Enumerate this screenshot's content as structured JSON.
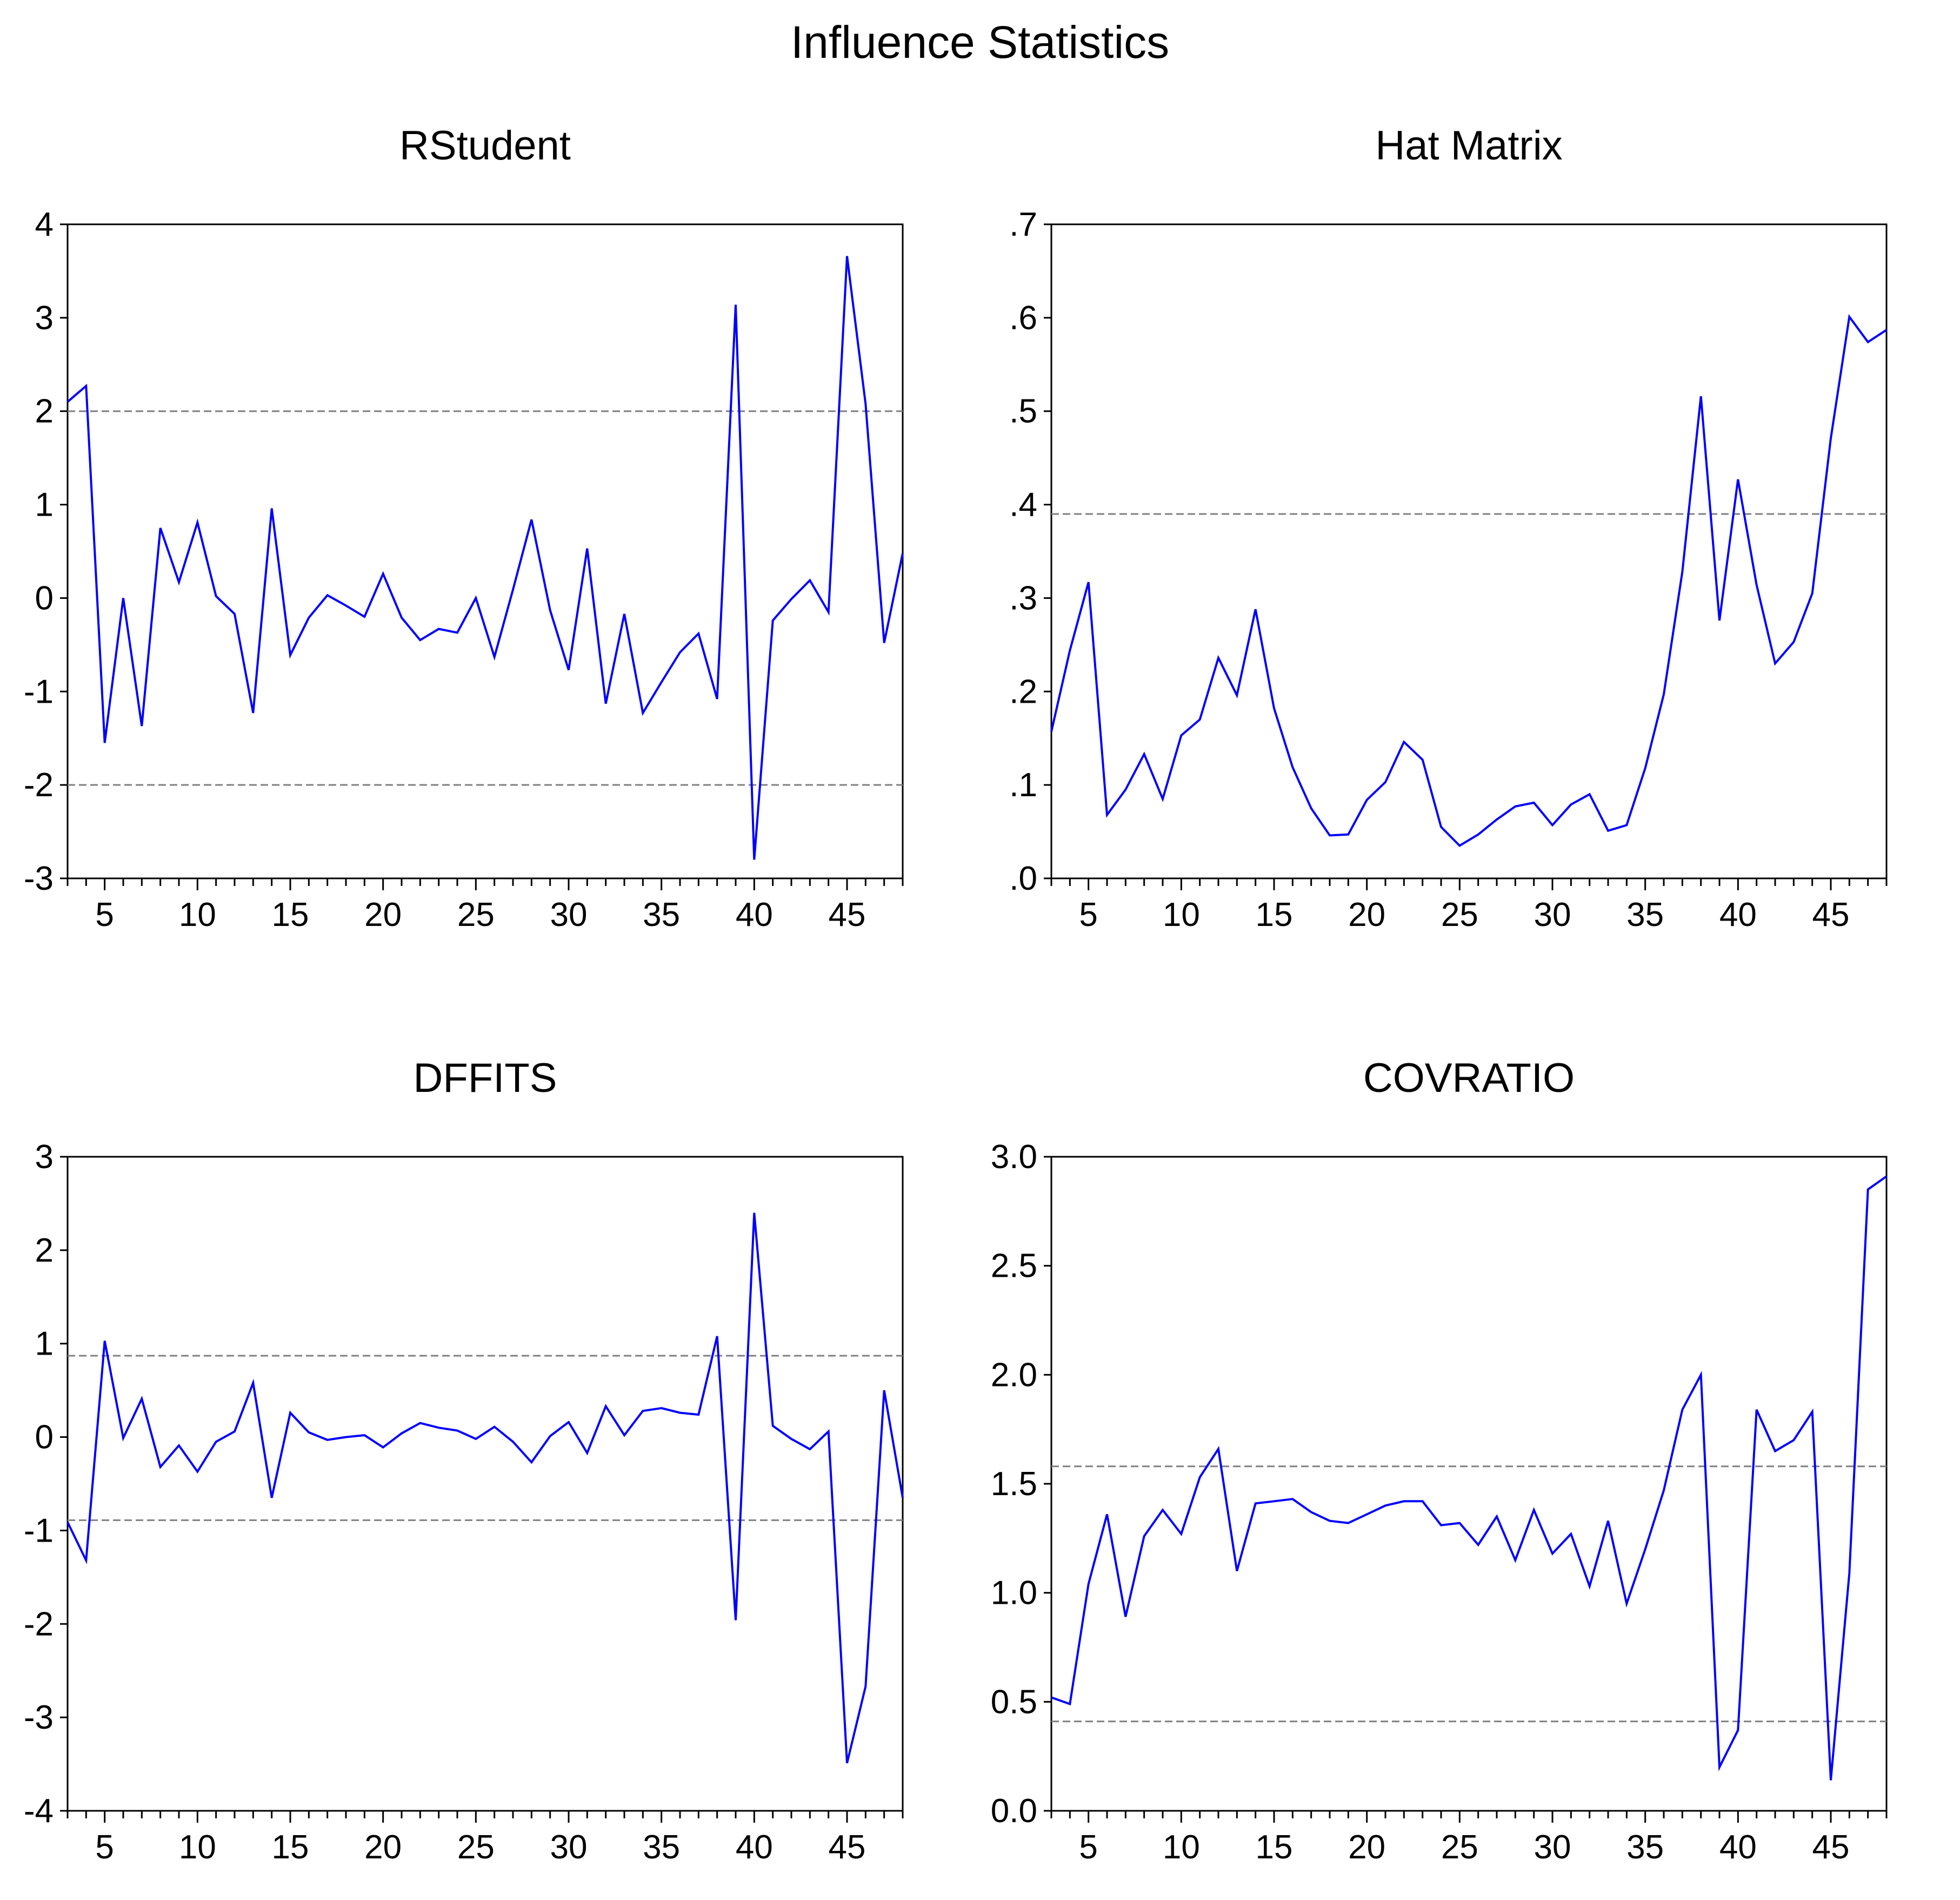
{
  "title": "Influence Statistics",
  "chart_data": [
    {
      "type": "line",
      "title": "RStudent",
      "ylim": [
        -3,
        4
      ],
      "xlim": [
        3,
        48
      ],
      "yticks": [
        4,
        3,
        2,
        1,
        0,
        -1,
        -2,
        -3
      ],
      "ytick_labels": [
        "4",
        "3",
        "2",
        "1",
        "0",
        "-1",
        "-2",
        "-3"
      ],
      "xticks": [
        5,
        10,
        15,
        20,
        25,
        30,
        35,
        40,
        45
      ],
      "xtick_labels": [
        "5",
        "10",
        "15",
        "20",
        "25",
        "30",
        "35",
        "40",
        "45"
      ],
      "ref_lines": [
        2,
        -2
      ],
      "line_color": "#0000ff",
      "ref_color": "#808080",
      "x": [
        3,
        4,
        5,
        6,
        7,
        8,
        9,
        10,
        11,
        12,
        13,
        14,
        15,
        16,
        17,
        18,
        19,
        20,
        21,
        22,
        23,
        24,
        25,
        26,
        27,
        28,
        29,
        30,
        31,
        32,
        33,
        34,
        35,
        36,
        37,
        38,
        39,
        40,
        41,
        42,
        43,
        44,
        45,
        46,
        47,
        48
      ],
      "values": [
        2.1,
        2.27,
        -1.55,
        0.0,
        -1.37,
        0.75,
        0.17,
        0.81,
        0.02,
        -0.17,
        -1.23,
        0.96,
        -0.61,
        -0.21,
        0.03,
        -0.08,
        -0.2,
        0.26,
        -0.21,
        -0.45,
        -0.33,
        -0.37,
        0.0,
        -0.63,
        0.09,
        0.84,
        -0.13,
        -0.77,
        0.53,
        -1.13,
        -0.17,
        -1.23,
        -0.9,
        -0.58,
        -0.38,
        -1.08,
        3.14,
        -2.8,
        -0.24,
        -0.01,
        0.19,
        -0.15,
        3.66,
        2.08,
        -0.48,
        0.48
      ]
    },
    {
      "type": "line",
      "title": "Hat Matrix",
      "ylim": [
        0,
        0.7
      ],
      "xlim": [
        3,
        48
      ],
      "yticks": [
        0.7,
        0.6,
        0.5,
        0.4,
        0.3,
        0.2,
        0.1,
        0.0
      ],
      "ytick_labels": [
        ".7",
        ".6",
        ".5",
        ".4",
        ".3",
        ".2",
        ".1",
        ".0"
      ],
      "xticks": [
        5,
        10,
        15,
        20,
        25,
        30,
        35,
        40,
        45
      ],
      "xtick_labels": [
        "5",
        "10",
        "15",
        "20",
        "25",
        "30",
        "35",
        "40",
        "45"
      ],
      "ref_lines": [
        0.39
      ],
      "line_color": "#0000ff",
      "ref_color": "#808080",
      "x": [
        3,
        4,
        5,
        6,
        7,
        8,
        9,
        10,
        11,
        12,
        13,
        14,
        15,
        16,
        17,
        18,
        19,
        20,
        21,
        22,
        23,
        24,
        25,
        26,
        27,
        28,
        29,
        30,
        31,
        32,
        33,
        34,
        35,
        36,
        37,
        38,
        39,
        40,
        41,
        42,
        43,
        44,
        45,
        46,
        47,
        48
      ],
      "values": [
        0.157,
        0.244,
        0.317,
        0.068,
        0.095,
        0.133,
        0.085,
        0.153,
        0.17,
        0.236,
        0.196,
        0.288,
        0.182,
        0.119,
        0.075,
        0.046,
        0.047,
        0.084,
        0.103,
        0.146,
        0.127,
        0.055,
        0.035,
        0.047,
        0.063,
        0.077,
        0.081,
        0.057,
        0.079,
        0.09,
        0.051,
        0.057,
        0.118,
        0.197,
        0.328,
        0.516,
        0.276,
        0.427,
        0.314,
        0.23,
        0.253,
        0.305,
        0.471,
        0.601,
        0.574,
        0.587
      ]
    },
    {
      "type": "line",
      "title": "DFFITS",
      "ylim": [
        -4,
        3
      ],
      "xlim": [
        3,
        48
      ],
      "yticks": [
        3,
        2,
        1,
        0,
        -1,
        -2,
        -3,
        -4
      ],
      "ytick_labels": [
        "3",
        "2",
        "1",
        "0",
        "-1",
        "-2",
        "-3",
        "-4"
      ],
      "xticks": [
        5,
        10,
        15,
        20,
        25,
        30,
        35,
        40,
        45
      ],
      "xtick_labels": [
        "5",
        "10",
        "15",
        "20",
        "25",
        "30",
        "35",
        "40",
        "45"
      ],
      "ref_lines": [
        0.87,
        -0.89
      ],
      "line_color": "#0000ff",
      "ref_color": "#808080",
      "x": [
        3,
        4,
        5,
        6,
        7,
        8,
        9,
        10,
        11,
        12,
        13,
        14,
        15,
        16,
        17,
        18,
        19,
        20,
        21,
        22,
        23,
        24,
        25,
        26,
        27,
        28,
        29,
        30,
        31,
        32,
        33,
        34,
        35,
        36,
        37,
        38,
        39,
        40,
        41,
        42,
        43,
        44,
        45,
        46,
        47,
        48
      ],
      "values": [
        -0.91,
        -1.32,
        1.03,
        -0.01,
        0.41,
        -0.32,
        -0.09,
        -0.37,
        -0.05,
        0.06,
        0.58,
        -0.65,
        0.26,
        0.05,
        -0.03,
        0.0,
        0.02,
        -0.11,
        0.04,
        0.15,
        0.1,
        0.07,
        -0.02,
        0.11,
        -0.05,
        -0.27,
        0.01,
        0.16,
        -0.17,
        0.33,
        0.02,
        0.28,
        0.31,
        0.26,
        0.24,
        1.08,
        -1.96,
        2.4,
        0.12,
        -0.02,
        -0.13,
        0.06,
        -3.49,
        -2.67,
        0.5,
        -0.65
      ]
    },
    {
      "type": "line",
      "title": "COVRATIO",
      "ylim": [
        0,
        3
      ],
      "xlim": [
        3,
        48
      ],
      "yticks": [
        3.0,
        2.5,
        2.0,
        1.5,
        1.0,
        0.5,
        0.0
      ],
      "ytick_labels": [
        "3.0",
        "2.5",
        "2.0",
        "1.5",
        "1.0",
        "0.5",
        "0.0"
      ],
      "xticks": [
        5,
        10,
        15,
        20,
        25,
        30,
        35,
        40,
        45
      ],
      "xtick_labels": [
        "5",
        "10",
        "15",
        "20",
        "25",
        "30",
        "35",
        "40",
        "45"
      ],
      "ref_lines": [
        1.58,
        0.41
      ],
      "line_color": "#0000ff",
      "ref_color": "#808080",
      "x": [
        3,
        4,
        5,
        6,
        7,
        8,
        9,
        10,
        11,
        12,
        13,
        14,
        15,
        16,
        17,
        18,
        19,
        20,
        21,
        22,
        23,
        24,
        25,
        26,
        27,
        28,
        29,
        30,
        31,
        32,
        33,
        34,
        35,
        36,
        37,
        38,
        39,
        40,
        41,
        42,
        43,
        44,
        45,
        46,
        47,
        48
      ],
      "values": [
        0.52,
        0.49,
        1.04,
        1.36,
        0.89,
        1.26,
        1.38,
        1.27,
        1.53,
        1.66,
        1.1,
        1.41,
        1.42,
        1.43,
        1.37,
        1.33,
        1.32,
        1.36,
        1.4,
        1.42,
        1.42,
        1.31,
        1.32,
        1.22,
        1.35,
        1.15,
        1.38,
        1.18,
        1.27,
        1.03,
        1.33,
        0.95,
        1.2,
        1.47,
        1.84,
        2.0,
        0.2,
        0.37,
        1.84,
        1.65,
        1.7,
        1.83,
        0.14,
        1.09,
        2.85,
        2.91
      ]
    }
  ]
}
